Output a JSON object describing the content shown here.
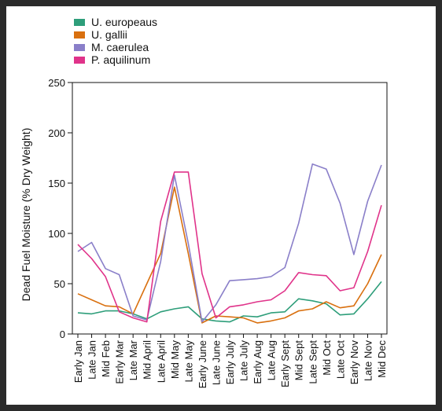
{
  "chart_data": {
    "type": "line",
    "title": "",
    "xlabel": "",
    "ylabel": "Dead Fuel Moisture (% Dry Weight)",
    "ylim": [
      0,
      250
    ],
    "yticks": [
      0,
      50,
      100,
      150,
      200,
      250
    ],
    "grid": false,
    "legend_position": "top-left",
    "categories": [
      "Early Jan",
      "Late Jan",
      "Mid Feb",
      "Early Mar",
      "Late Mar",
      "Mid April",
      "Late April",
      "Mid May",
      "Late May",
      "Early June",
      "Late June",
      "Early July",
      "Late July",
      "Early Aug",
      "Late Aug",
      "Early Sept",
      "Mid Sept",
      "Late Sept",
      "Mid Oct",
      "Late Oct",
      "Early Nov",
      "Late Nov",
      "Mid Dec"
    ],
    "series": [
      {
        "name": "U. europeaus",
        "color": "#2e9e7a",
        "values": [
          21,
          20,
          23,
          23,
          20,
          15,
          22,
          25,
          27,
          15,
          13,
          12,
          18,
          17,
          21,
          22,
          35,
          33,
          30,
          19,
          20,
          35,
          52
        ]
      },
      {
        "name": "U. gallii",
        "color": "#d9700f",
        "values": [
          40,
          34,
          28,
          27,
          20,
          50,
          80,
          146,
          80,
          11,
          18,
          17,
          16,
          11,
          13,
          16,
          23,
          25,
          32,
          26,
          28,
          50,
          79
        ]
      },
      {
        "name": "M. caerulea",
        "color": "#8a7fc9",
        "values": [
          82,
          91,
          65,
          59,
          18,
          14,
          72,
          158,
          90,
          12,
          29,
          53,
          54,
          55,
          57,
          66,
          110,
          169,
          164,
          130,
          79,
          132,
          168
        ]
      },
      {
        "name": "P. aquilinum",
        "color": "#e0338a",
        "values": [
          89,
          75,
          57,
          22,
          16,
          12,
          112,
          161,
          161,
          60,
          16,
          27,
          29,
          32,
          34,
          43,
          61,
          59,
          58,
          43,
          46,
          82,
          128
        ]
      }
    ]
  }
}
